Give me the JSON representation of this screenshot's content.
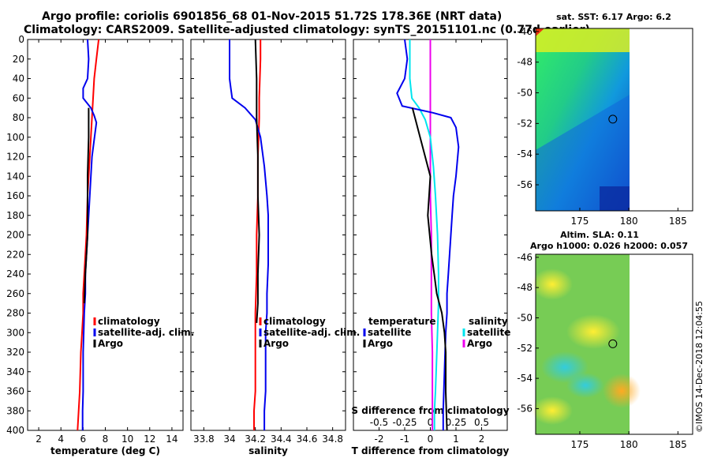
{
  "title": {
    "line1": "Argo profile: coriolis 6901856_68 01-Nov-2015 51.72S 178.36E (NRT data)",
    "line2": "Climatology: CARS2009. Satellite-adjusted climatology: synTS_20151101.nc (0.77d earlier)"
  },
  "colors": {
    "climatology": "#ff0000",
    "satellite": "#0000ee",
    "argo": "#000000",
    "satellite_s": "#00e5ee",
    "argo_s": "#ee00ee"
  },
  "chart_data": [
    {
      "type": "line",
      "name": "temperature",
      "xlabel": "temperature (deg C)",
      "ylabel": "",
      "xlim": [
        1,
        15
      ],
      "ylim": [
        400,
        0
      ],
      "xticks": [
        "2",
        "4",
        "6",
        "8",
        "10",
        "12",
        "14"
      ],
      "yticks": [
        "0",
        "20",
        "40",
        "60",
        "80",
        "100",
        "120",
        "140",
        "160",
        "180",
        "200",
        "220",
        "240",
        "260",
        "280",
        "300",
        "320",
        "340",
        "360",
        "380",
        "400"
      ],
      "legend": [
        "climatology",
        "satellite-adj. clim.",
        "Argo"
      ],
      "legend_position": "lower-right",
      "series": [
        {
          "name": "climatology",
          "x": [
            7.4,
            7.2,
            7.0,
            6.9,
            6.8,
            6.7,
            6.6,
            6.5,
            6.4,
            6.35,
            6.3,
            6.2,
            6.1,
            6.0,
            6.0,
            5.9,
            5.8,
            5.75,
            5.7,
            5.6,
            5.5
          ],
          "y": [
            0,
            20,
            40,
            60,
            80,
            100,
            120,
            140,
            160,
            180,
            200,
            220,
            240,
            260,
            280,
            300,
            320,
            340,
            360,
            380,
            400
          ]
        },
        {
          "name": "satellite-adj. clim.",
          "x": [
            6.4,
            6.5,
            6.4,
            6.0,
            6.0,
            6.7,
            7.0,
            7.2,
            6.8,
            6.6,
            6.5,
            6.4,
            6.3,
            6.2,
            6.2,
            6.1,
            6.05,
            6.0,
            6.0,
            6.0,
            5.95,
            5.95
          ],
          "y": [
            0,
            20,
            40,
            50,
            60,
            70,
            78,
            85,
            120,
            160,
            180,
            200,
            220,
            240,
            260,
            280,
            300,
            320,
            340,
            360,
            380,
            400
          ]
        },
        {
          "name": "Argo",
          "x": [
            6.5,
            6.5,
            6.4,
            6.4,
            6.4,
            6.3,
            6.2,
            6.1
          ],
          "y": [
            70,
            100,
            140,
            180,
            200,
            220,
            240,
            270
          ]
        }
      ]
    },
    {
      "type": "line",
      "name": "salinity",
      "xlabel": "salinity",
      "ylabel": "",
      "xlim": [
        33.7,
        34.9
      ],
      "ylim": [
        400,
        0
      ],
      "xticks": [
        "33.8",
        "34",
        "34.2",
        "34.4",
        "34.6",
        "34.8"
      ],
      "yticks": [],
      "legend": [
        "climatology",
        "satellite-adj. clim.",
        "Argo"
      ],
      "legend_position": "lower-right",
      "series": [
        {
          "name": "climatology",
          "x": [
            34.24,
            34.24,
            34.235,
            34.23,
            34.23,
            34.225,
            34.22,
            34.22,
            34.22,
            34.215,
            34.21,
            34.21,
            34.21,
            34.205,
            34.2,
            34.2,
            34.2,
            34.2,
            34.2,
            34.19,
            34.19
          ],
          "y": [
            0,
            20,
            40,
            60,
            80,
            100,
            120,
            140,
            160,
            180,
            200,
            220,
            240,
            260,
            280,
            300,
            320,
            340,
            360,
            380,
            400
          ]
        },
        {
          "name": "satellite-adj. clim.",
          "x": [
            34.0,
            34.0,
            34.01,
            34.02,
            34.12,
            34.2,
            34.24,
            34.27,
            34.29,
            34.3,
            34.3,
            34.3,
            34.29,
            34.29,
            34.28,
            34.28,
            34.28,
            34.28,
            34.27,
            34.27
          ],
          "y": [
            0,
            40,
            50,
            60,
            70,
            82,
            100,
            130,
            160,
            180,
            200,
            230,
            260,
            280,
            300,
            320,
            340,
            360,
            380,
            400
          ]
        },
        {
          "name": "Argo",
          "x": [
            34.2,
            34.21,
            34.21,
            34.22,
            34.22,
            34.23,
            34.22,
            34.22,
            34.21
          ],
          "y": [
            0,
            40,
            80,
            120,
            160,
            200,
            240,
            270,
            290
          ]
        }
      ]
    },
    {
      "type": "line",
      "name": "differences",
      "xlabel": "T difference from climatology",
      "xlabel_top": "S difference from climatology",
      "xlim": [
        -3,
        3
      ],
      "xlim_top": [
        -0.75,
        0.75
      ],
      "ylim": [
        400,
        0
      ],
      "xticks": [
        "-2",
        "-1",
        "0",
        "1",
        "2"
      ],
      "xticks_top": [
        "-0.5",
        "-0.25",
        "0",
        "0.25",
        "0.5"
      ],
      "legend": [
        "temperature",
        "satellite",
        "Argo",
        "salinity",
        "satellite",
        "Argo"
      ],
      "legend_position": "lower-center",
      "series": [
        {
          "name": "temperature satellite",
          "axis": "T",
          "x": [
            -1.0,
            -0.9,
            -1.0,
            -1.3,
            -1.1,
            0.1,
            0.8,
            1.0,
            1.1,
            1.0,
            0.9,
            0.85,
            0.8,
            0.75,
            0.7,
            0.65,
            0.65,
            0.6,
            0.55,
            0.5,
            0.5
          ],
          "y": [
            0,
            20,
            40,
            55,
            68,
            75,
            80,
            90,
            110,
            140,
            160,
            180,
            200,
            220,
            240,
            260,
            280,
            300,
            340,
            380,
            400
          ]
        },
        {
          "name": "temperature Argo",
          "axis": "T",
          "x": [
            -0.7,
            -0.4,
            0.0,
            -0.1,
            0.05,
            0.15,
            0.25,
            0.45,
            0.55,
            0.6,
            0.6,
            0.65
          ],
          "y": [
            70,
            100,
            140,
            180,
            220,
            240,
            260,
            280,
            300,
            320,
            360,
            400
          ]
        },
        {
          "name": "salinity satellite",
          "axis": "S",
          "x": [
            -0.2,
            -0.2,
            -0.19,
            -0.18,
            -0.11,
            -0.05,
            0.0,
            0.03,
            0.05,
            0.06,
            0.07,
            0.08,
            0.08,
            0.07,
            0.06,
            0.05,
            0.04,
            0.04
          ],
          "y": [
            0,
            40,
            50,
            60,
            70,
            82,
            100,
            130,
            160,
            180,
            200,
            240,
            270,
            300,
            330,
            360,
            380,
            400
          ]
        },
        {
          "name": "salinity Argo",
          "axis": "S",
          "x": [
            0.0,
            0.0,
            0.0,
            0.0,
            0.0,
            0.01,
            0.01,
            0.01,
            0.02,
            0.02,
            0.02
          ],
          "y": [
            0,
            40,
            80,
            120,
            160,
            200,
            240,
            280,
            320,
            360,
            400
          ]
        }
      ]
    },
    {
      "type": "heatmap",
      "name": "sst_map",
      "title": "sat. SST: 6.17 Argo: 6.2",
      "xlim": [
        170.5,
        186.5
      ],
      "ylim": [
        -57.7,
        -45.8
      ],
      "xticks": [
        "175",
        "180",
        "185"
      ],
      "yticks": [
        "-46",
        "-48",
        "-50",
        "-52",
        "-54",
        "-56"
      ],
      "argo_position": {
        "lon": 178.36,
        "lat": -51.72
      }
    },
    {
      "type": "heatmap",
      "name": "sla_map",
      "title": "Altim. SLA: 0.11",
      "subtitle": "Argo h1000: 0.026 h2000: 0.057",
      "xlim": [
        170.5,
        186.5
      ],
      "ylim": [
        -57.7,
        -45.8
      ],
      "xticks": [
        "175",
        "180",
        "185"
      ],
      "yticks": [
        "-46",
        "-48",
        "-50",
        "-52",
        "-54",
        "-56"
      ],
      "argo_position": {
        "lon": 178.36,
        "lat": -51.72
      }
    }
  ],
  "legend_labels": {
    "climatology": "climatology",
    "satellite_adj": "satellite-adj. clim.",
    "argo": "Argo",
    "temperature": "temperature",
    "salinity": "salinity",
    "satellite": "satellite"
  },
  "watermark": "©IMOS 14-Dec-2018 12:04:55"
}
